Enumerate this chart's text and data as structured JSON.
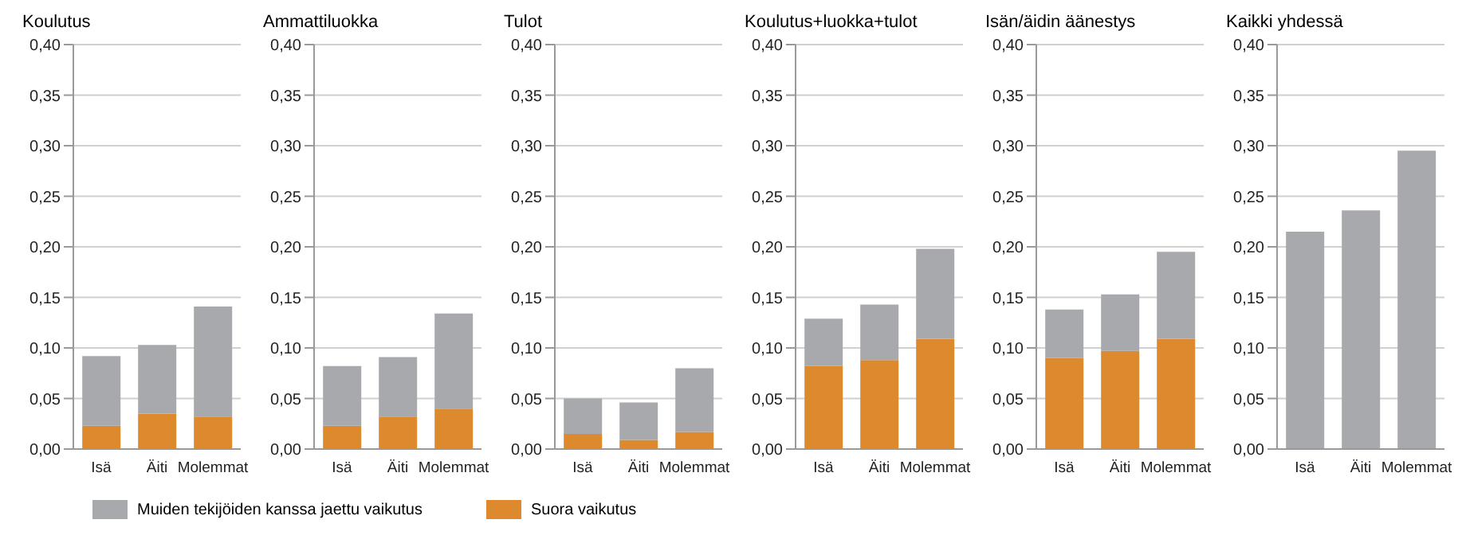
{
  "chart_data": [
    {
      "type": "bar",
      "title": "Koulutus",
      "categories": [
        "Isä",
        "Äiti",
        "Molemmat"
      ],
      "stacked": true,
      "grid": "y",
      "legend": "bottom",
      "ylim": [
        0,
        0.4
      ],
      "yticks": [
        {
          "value": 0,
          "label": "0,00"
        },
        {
          "value": 0.05,
          "label": "0,05"
        },
        {
          "value": 0.1,
          "label": "0,10"
        },
        {
          "value": 0.15,
          "label": "0,15"
        },
        {
          "value": 0.2,
          "label": "0,20"
        },
        {
          "value": 0.25,
          "label": "0,25"
        },
        {
          "value": 0.3,
          "label": "0,30"
        },
        {
          "value": 0.35,
          "label": "0,35"
        },
        {
          "value": 0.4,
          "label": "0,40"
        }
      ],
      "series": [
        {
          "name": "Suora vaikutus",
          "color": "#dd8a2f",
          "values": [
            0.023,
            0.035,
            0.032
          ]
        },
        {
          "name": "Muiden tekijöiden kanssa jaettu vaikutus",
          "color": "#a7a9ac",
          "values": [
            0.069,
            0.068,
            0.109
          ]
        }
      ]
    },
    {
      "type": "bar",
      "title": "Ammattiluokka",
      "categories": [
        "Isä",
        "Äiti",
        "Molemmat"
      ],
      "stacked": true,
      "grid": "y",
      "ylim": [
        0,
        0.4
      ],
      "yticks": [
        {
          "value": 0,
          "label": "0,00"
        },
        {
          "value": 0.05,
          "label": "0,05"
        },
        {
          "value": 0.1,
          "label": "0,10"
        },
        {
          "value": 0.15,
          "label": "0,15"
        },
        {
          "value": 0.2,
          "label": "0,20"
        },
        {
          "value": 0.25,
          "label": "0,25"
        },
        {
          "value": 0.3,
          "label": "0,30"
        },
        {
          "value": 0.35,
          "label": "0,35"
        },
        {
          "value": 0.4,
          "label": "0,40"
        }
      ],
      "series": [
        {
          "color": "#dd8a2f",
          "values": [
            0.023,
            0.032,
            0.04
          ]
        },
        {
          "color": "#a7a9ac",
          "values": [
            0.059,
            0.059,
            0.094
          ]
        }
      ]
    },
    {
      "type": "bar",
      "title": "Tulot",
      "categories": [
        "Isä",
        "Äiti",
        "Molemmat"
      ],
      "stacked": true,
      "grid": "y",
      "ylim": [
        0,
        0.4
      ],
      "yticks": [
        {
          "value": 0,
          "label": "0,00"
        },
        {
          "value": 0.05,
          "label": "0,05"
        },
        {
          "value": 0.1,
          "label": "0,10"
        },
        {
          "value": 0.15,
          "label": "0,15"
        },
        {
          "value": 0.2,
          "label": "0,20"
        },
        {
          "value": 0.25,
          "label": "0,25"
        },
        {
          "value": 0.3,
          "label": "0,30"
        },
        {
          "value": 0.35,
          "label": "0,35"
        },
        {
          "value": 0.4,
          "label": "0,40"
        }
      ],
      "series": [
        {
          "color": "#dd8a2f",
          "values": [
            0.015,
            0.009,
            0.017
          ]
        },
        {
          "color": "#a7a9ac",
          "values": [
            0.035,
            0.037,
            0.063
          ]
        }
      ]
    },
    {
      "type": "bar",
      "title": "Koulutus+luokka+tulot",
      "categories": [
        "Isä",
        "Äiti",
        "Molemmat"
      ],
      "stacked": true,
      "grid": "y",
      "ylim": [
        0,
        0.4
      ],
      "yticks": [
        {
          "value": 0,
          "label": "0,00"
        },
        {
          "value": 0.05,
          "label": "0,05"
        },
        {
          "value": 0.1,
          "label": "0,10"
        },
        {
          "value": 0.15,
          "label": "0,15"
        },
        {
          "value": 0.2,
          "label": "0,20"
        },
        {
          "value": 0.25,
          "label": "0,25"
        },
        {
          "value": 0.3,
          "label": "0,30"
        },
        {
          "value": 0.35,
          "label": "0,35"
        },
        {
          "value": 0.4,
          "label": "0,40"
        }
      ],
      "series": [
        {
          "color": "#dd8a2f",
          "values": [
            0.082,
            0.088,
            0.109
          ]
        },
        {
          "color": "#a7a9ac",
          "values": [
            0.047,
            0.055,
            0.089
          ]
        }
      ]
    },
    {
      "type": "bar",
      "title": "Isän/äidin äänestys",
      "categories": [
        "Isä",
        "Äiti",
        "Molemmat"
      ],
      "stacked": true,
      "grid": "y",
      "ylim": [
        0,
        0.4
      ],
      "yticks": [
        {
          "value": 0,
          "label": "0,00"
        },
        {
          "value": 0.05,
          "label": "0,05"
        },
        {
          "value": 0.1,
          "label": "0,10"
        },
        {
          "value": 0.15,
          "label": "0,15"
        },
        {
          "value": 0.2,
          "label": "0,20"
        },
        {
          "value": 0.25,
          "label": "0,25"
        },
        {
          "value": 0.3,
          "label": "0,30"
        },
        {
          "value": 0.35,
          "label": "0,35"
        },
        {
          "value": 0.4,
          "label": "0,40"
        }
      ],
      "series": [
        {
          "color": "#dd8a2f",
          "values": [
            0.09,
            0.097,
            0.109
          ]
        },
        {
          "color": "#a7a9ac",
          "values": [
            0.048,
            0.056,
            0.086
          ]
        }
      ]
    },
    {
      "type": "bar",
      "title": "Kaikki yhdessä",
      "categories": [
        "Isä",
        "Äiti",
        "Molemmat"
      ],
      "stacked": true,
      "grid": "y",
      "ylim": [
        0,
        0.4
      ],
      "yticks": [
        {
          "value": 0,
          "label": "0,00"
        },
        {
          "value": 0.05,
          "label": "0,05"
        },
        {
          "value": 0.1,
          "label": "0,10"
        },
        {
          "value": 0.15,
          "label": "0,15"
        },
        {
          "value": 0.2,
          "label": "0,20"
        },
        {
          "value": 0.25,
          "label": "0,25"
        },
        {
          "value": 0.3,
          "label": "0,30"
        },
        {
          "value": 0.35,
          "label": "0,35"
        },
        {
          "value": 0.4,
          "label": "0,40"
        }
      ],
      "series": [
        {
          "color": "#a7a9ac",
          "values": [
            0.215,
            0.236,
            0.295
          ]
        }
      ]
    }
  ]
}
